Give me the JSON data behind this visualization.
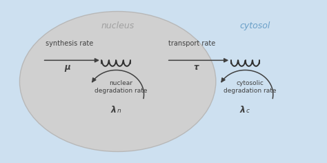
{
  "bg_color": "#cde0f0",
  "nucleus_color": "#d0d0d0",
  "nucleus_edge_color": "#b8b8b8",
  "arrow_color": "#404040",
  "text_dark": "#404040",
  "nucleus_label": "nucleus",
  "cytosol_label": "cytosol",
  "nucleus_label_color": "#a0a0a0",
  "cytosol_label_color": "#6aa0c8",
  "synthesis_rate_label": "synthesis rate",
  "mu_label": "μ",
  "transport_rate_label": "transport rate",
  "tau_label": "τ",
  "nuclear_deg_label": "nuclear\ndegradation rate",
  "lambda_n_label": "λ",
  "lambda_n_sub": "n",
  "cytosolic_deg_label": "cytosolic\ndegradation rate",
  "lambda_c_label": "λ",
  "lambda_c_sub": "c",
  "outer_edge_color": "#b0ccdf"
}
